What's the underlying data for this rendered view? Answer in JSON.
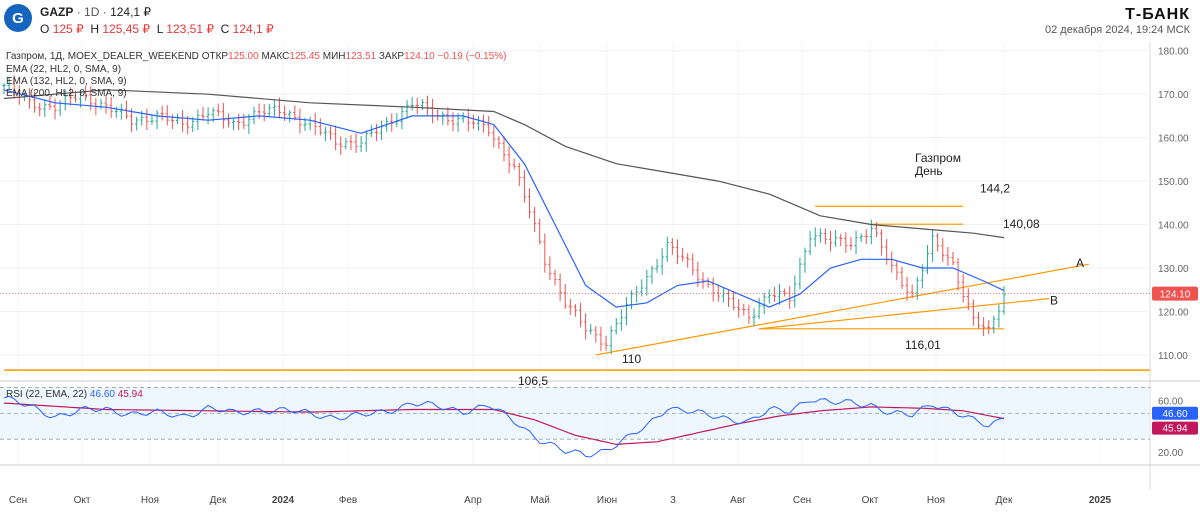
{
  "header": {
    "logo_glyph": "G",
    "symbol": "GAZP",
    "interval": "1D",
    "last_price": "124,1 ₽",
    "ohlc": [
      {
        "label": "O",
        "value": "125 ₽"
      },
      {
        "label": "H",
        "value": "125,45 ₽"
      },
      {
        "label": "L",
        "value": "123,51 ₽"
      },
      {
        "label": "C",
        "value": "124,1 ₽"
      }
    ],
    "brand": "Т-БАНК",
    "timestamp": "02 декабря 2024, 19:24 МСК"
  },
  "legend": {
    "main": "Газпром, 1Д, MOEX_DEALER_WEEKEND",
    "otkr_label": "ОТКР",
    "otkr": "125.00",
    "maks_label": "МАКС",
    "maks": "125.45",
    "min_label": "МИН",
    "min": "123.51",
    "zakr_label": "ЗАКР",
    "zakr": "124.10",
    "change": "−0.19 (−0.15%)",
    "ema1": "EMA (22, HL2, 0, SMA, 9)",
    "ema2": "EMA (132, HL2, 0, SMA, 9)",
    "ema3": "EMA (200, HL2, 0, SMA, 9)"
  },
  "annotations": {
    "title_line1": "Газпром",
    "title_line2": "День",
    "lvl_144": "144,2",
    "lvl_140": "140,08",
    "lvl_116": "116,01",
    "lvl_110": "110",
    "lvl_106": "106,5",
    "line_a": "A",
    "line_b": "B"
  },
  "rsi_legend": {
    "label": "RSI (22, EMA, 22)",
    "v1": "46.60",
    "v2": "45.94"
  },
  "colors": {
    "up": "#26a69a",
    "down": "#ef5350",
    "ema_fast": "#2962ff",
    "ema_slow": "#555555",
    "orange": "#ff9800",
    "rsi": "#2962ff",
    "rsi_ma": "#c2185b"
  },
  "chart_data": [
    {
      "type": "candlestick",
      "title": "Газпром, 1Д, MOEX_DEALER_WEEKEND",
      "ylim": [
        104,
        182
      ],
      "y_ticks": [
        110,
        120,
        130,
        140,
        150,
        160,
        170,
        180
      ],
      "x_labels": [
        "Сен",
        "Окт",
        "Ноя",
        "Дек",
        "2024",
        "Фев",
        "Апр",
        "Май",
        "Июн",
        "3",
        "Авг",
        "Сен",
        "Окт",
        "Ноя",
        "Дек",
        "2025"
      ],
      "last_value": "124.10",
      "close_path": [
        [
          0,
          172
        ],
        [
          5,
          168
        ],
        [
          10,
          167
        ],
        [
          15,
          170
        ],
        [
          20,
          167
        ],
        [
          25,
          164
        ],
        [
          30,
          165
        ],
        [
          35,
          163
        ],
        [
          40,
          166
        ],
        [
          45,
          163
        ],
        [
          50,
          166
        ],
        [
          55,
          166
        ],
        [
          60,
          163
        ],
        [
          65,
          159
        ],
        [
          70,
          159
        ],
        [
          75,
          163
        ],
        [
          80,
          168
        ],
        [
          85,
          165
        ],
        [
          90,
          164
        ],
        [
          95,
          162
        ],
        [
          100,
          153
        ],
        [
          103,
          143
        ],
        [
          106,
          132
        ],
        [
          110,
          122
        ],
        [
          114,
          116
        ],
        [
          118,
          113
        ],
        [
          122,
          121
        ],
        [
          126,
          128
        ],
        [
          130,
          135
        ],
        [
          134,
          131
        ],
        [
          138,
          126
        ],
        [
          142,
          122
        ],
        [
          146,
          119
        ],
        [
          150,
          124
        ],
        [
          154,
          123
        ],
        [
          158,
          138
        ],
        [
          162,
          136
        ],
        [
          166,
          136
        ],
        [
          170,
          139
        ],
        [
          174,
          130
        ],
        [
          178,
          124
        ],
        [
          182,
          136
        ],
        [
          186,
          131
        ],
        [
          190,
          118
        ],
        [
          193,
          115
        ],
        [
          196,
          124.1
        ]
      ],
      "ema_fast": [
        [
          0,
          171
        ],
        [
          10,
          168
        ],
        [
          20,
          167
        ],
        [
          30,
          165
        ],
        [
          40,
          164
        ],
        [
          50,
          165
        ],
        [
          60,
          164
        ],
        [
          70,
          161
        ],
        [
          80,
          165
        ],
        [
          90,
          165
        ],
        [
          96,
          163
        ],
        [
          102,
          154
        ],
        [
          108,
          140
        ],
        [
          114,
          126
        ],
        [
          120,
          121
        ],
        [
          126,
          122
        ],
        [
          132,
          126
        ],
        [
          138,
          127
        ],
        [
          144,
          124
        ],
        [
          150,
          121
        ],
        [
          156,
          124
        ],
        [
          162,
          130
        ],
        [
          168,
          132
        ],
        [
          174,
          132
        ],
        [
          180,
          130
        ],
        [
          186,
          130
        ],
        [
          192,
          127
        ],
        [
          196,
          124.8
        ]
      ],
      "ema_slow": [
        [
          0,
          169
        ],
        [
          20,
          171
        ],
        [
          40,
          170
        ],
        [
          60,
          168
        ],
        [
          80,
          167
        ],
        [
          96,
          166
        ],
        [
          102,
          163
        ],
        [
          110,
          158
        ],
        [
          120,
          154
        ],
        [
          130,
          152
        ],
        [
          140,
          150
        ],
        [
          150,
          147
        ],
        [
          160,
          142
        ],
        [
          170,
          140
        ],
        [
          180,
          139
        ],
        [
          190,
          138
        ],
        [
          196,
          137
        ]
      ],
      "levels": [
        {
          "label": "144,2",
          "value": 144.2,
          "from": 159,
          "to": 174
        },
        {
          "label": "140,08",
          "value": 140.08,
          "from": 170,
          "to": 174
        },
        {
          "label": "116,01",
          "value": 116.01,
          "from": 148,
          "to": 193
        },
        {
          "label": "106,5",
          "value": 106.5,
          "from": 0,
          "to": 196
        }
      ],
      "trendlines": [
        {
          "label": "A",
          "from": [
            116,
            110
          ],
          "to": [
            197,
            129.5
          ]
        },
        {
          "label": "B",
          "from": [
            148,
            116.01
          ],
          "to": [
            197,
            122.5
          ]
        }
      ]
    },
    {
      "type": "line",
      "title": "RSI (22, EMA, 22)",
      "ylim": [
        10,
        72
      ],
      "y_ticks": [
        20,
        60
      ],
      "levels": [
        30,
        50,
        70
      ],
      "series": [
        {
          "name": "RSI",
          "values": [
            [
              0,
              62
            ],
            [
              5,
              55
            ],
            [
              10,
              48
            ],
            [
              15,
              52
            ],
            [
              20,
              53
            ],
            [
              25,
              50
            ],
            [
              30,
              50
            ],
            [
              35,
              48
            ],
            [
              40,
              54
            ],
            [
              45,
              50
            ],
            [
              50,
              53
            ],
            [
              55,
              52
            ],
            [
              60,
              50
            ],
            [
              65,
              47
            ],
            [
              70,
              48
            ],
            [
              75,
              52
            ],
            [
              80,
              58
            ],
            [
              85,
              55
            ],
            [
              90,
              52
            ],
            [
              95,
              56
            ],
            [
              100,
              44
            ],
            [
              105,
              30
            ],
            [
              110,
              20
            ],
            [
              114,
              18
            ],
            [
              118,
              22
            ],
            [
              122,
              30
            ],
            [
              126,
              40
            ],
            [
              130,
              55
            ],
            [
              134,
              52
            ],
            [
              138,
              48
            ],
            [
              142,
              46
            ],
            [
              146,
              44
            ],
            [
              150,
              52
            ],
            [
              154,
              52
            ],
            [
              158,
              62
            ],
            [
              162,
              58
            ],
            [
              166,
              58
            ],
            [
              170,
              57
            ],
            [
              174,
              50
            ],
            [
              178,
              48
            ],
            [
              182,
              58
            ],
            [
              186,
              52
            ],
            [
              190,
              44
            ],
            [
              193,
              40
            ],
            [
              196,
              46.6
            ]
          ]
        },
        {
          "name": "RSI MA",
          "values": [
            [
              0,
              58
            ],
            [
              20,
              53
            ],
            [
              40,
              52
            ],
            [
              60,
              51
            ],
            [
              80,
              53
            ],
            [
              96,
              53
            ],
            [
              104,
              45
            ],
            [
              112,
              33
            ],
            [
              120,
              26
            ],
            [
              128,
              28
            ],
            [
              136,
              35
            ],
            [
              144,
              42
            ],
            [
              152,
              48
            ],
            [
              160,
              52
            ],
            [
              170,
              55
            ],
            [
              180,
              54
            ],
            [
              188,
              52
            ],
            [
              196,
              45.94
            ]
          ]
        }
      ]
    }
  ]
}
